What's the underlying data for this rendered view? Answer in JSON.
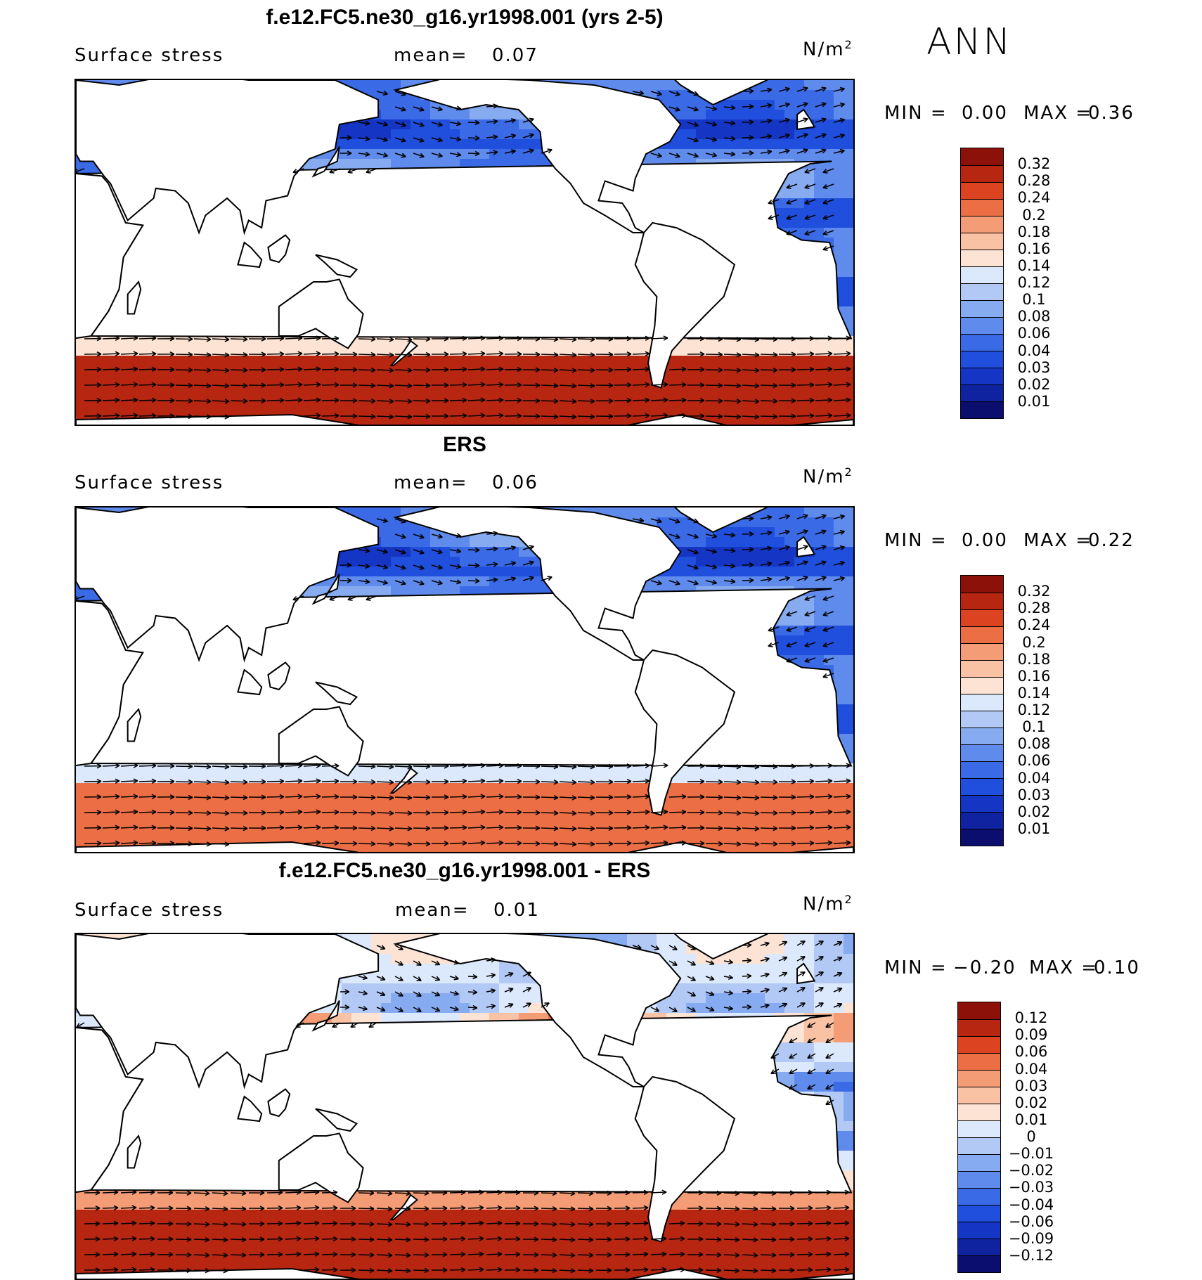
{
  "season": "ANN",
  "palettes": {
    "abs": [
      "#0b0e6e",
      "#0f22a0",
      "#1535c4",
      "#1f4fdc",
      "#3a6ae6",
      "#5f8cec",
      "#86abf1",
      "#b2c9f5",
      "#dce8fb",
      "#fde3d3",
      "#f9c2a4",
      "#f49c76",
      "#ec6e45",
      "#dc4320",
      "#b72611",
      "#8c1108"
    ],
    "diff": [
      "#0b0e6e",
      "#0f22a0",
      "#1535c4",
      "#1f4fdc",
      "#3a6ae6",
      "#5f8cec",
      "#86abf1",
      "#b2c9f5",
      "#dce8fb",
      "#fde3d3",
      "#f9c2a4",
      "#f49c76",
      "#ec6e45",
      "#dc4320",
      "#b72611",
      "#8c1108"
    ]
  },
  "panels": [
    {
      "title": "f.e12.FC5.ne30_g16.yr1998.001 (yrs 2-5)",
      "variable": "Surface stress",
      "mean_label": "mean=",
      "mean_value": "0.07",
      "units": "N/m",
      "units_exp": "2",
      "min_label": "MIN =",
      "min_value": "0.00",
      "max_label": "MAX =",
      "max_value": "0.36",
      "levels": [
        "0.32",
        "0.28",
        "0.24",
        "0.2",
        "0.18",
        "0.16",
        "0.14",
        "0.12",
        "0.1",
        "0.08",
        "0.06",
        "0.04",
        "0.03",
        "0.02",
        "0.01"
      ],
      "palette": "abs"
    },
    {
      "title": "ERS",
      "variable": "Surface stress",
      "mean_label": "mean=",
      "mean_value": "0.06",
      "units": "N/m",
      "units_exp": "2",
      "min_label": "MIN =",
      "min_value": "0.00",
      "max_label": "MAX =",
      "max_value": "0.22",
      "levels": [
        "0.32",
        "0.28",
        "0.24",
        "0.2",
        "0.18",
        "0.16",
        "0.14",
        "0.12",
        "0.1",
        "0.08",
        "0.06",
        "0.04",
        "0.03",
        "0.02",
        "0.01"
      ],
      "palette": "abs"
    },
    {
      "title": "f.e12.FC5.ne30_g16.yr1998.001 - ERS",
      "variable": "Surface stress",
      "mean_label": "mean=",
      "mean_value": "0.01",
      "units": "N/m",
      "units_exp": "2",
      "min_label": "MIN =",
      "min_value": "−0.20",
      "max_label": "MAX =",
      "max_value": "0.10",
      "levels": [
        "0.12",
        "0.09",
        "0.06",
        "0.04",
        "0.03",
        "0.02",
        "0.01",
        "0",
        "−0.01",
        "−0.02",
        "−0.03",
        "−0.04",
        "−0.06",
        "−0.09",
        "−0.12"
      ],
      "palette": "diff"
    }
  ]
}
